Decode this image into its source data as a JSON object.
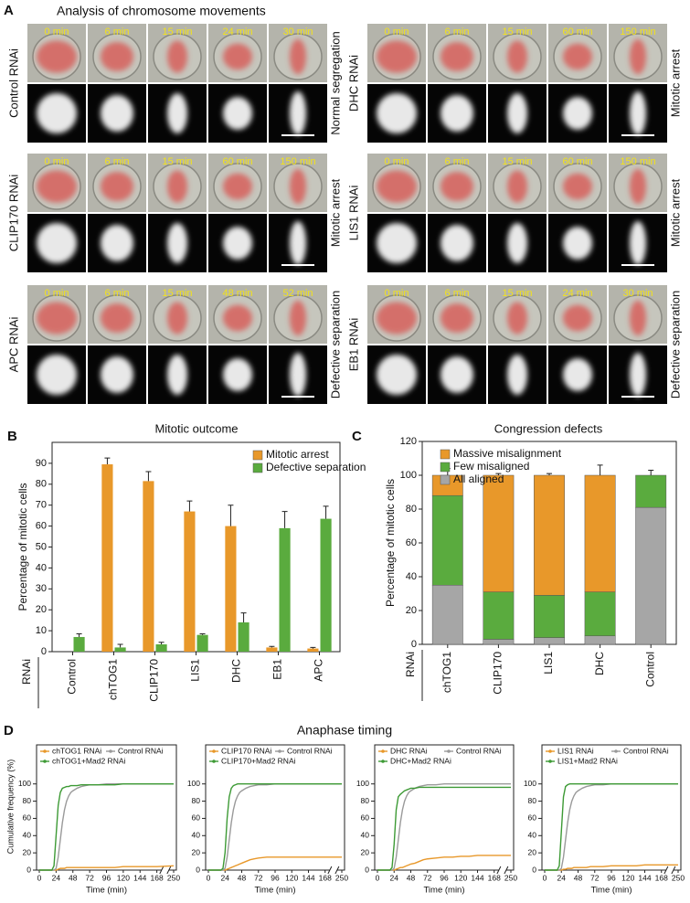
{
  "panel_a": {
    "letter": "A",
    "title": "Analysis of chromosome movements",
    "rows": [
      {
        "rnai": "Control RNAi",
        "outcome": "Normal segregation",
        "times": [
          "0 min",
          "6 min",
          "15 min",
          "24 min",
          "30 min"
        ]
      },
      {
        "rnai": "DHC RNAi",
        "outcome": "Mitotic arrest",
        "times": [
          "0 min",
          "6 min",
          "15 min",
          "60 min",
          "150 min"
        ]
      },
      {
        "rnai": "CLIP170 RNAi",
        "outcome": "Mitotic arrest",
        "times": [
          "0 min",
          "6 min",
          "15 min",
          "60 min",
          "150 min"
        ]
      },
      {
        "rnai": "LIS1 RNAi",
        "outcome": "Mitotic arrest",
        "times": [
          "0 min",
          "6 min",
          "15 min",
          "60 min",
          "150 min"
        ]
      },
      {
        "rnai": "APC RNAi",
        "outcome": "Defective separation",
        "times": [
          "0 min",
          "6 min",
          "15 min",
          "48 min",
          "52 min"
        ]
      },
      {
        "rnai": "EB1 RNAi",
        "outcome": "Defective separation",
        "times": [
          "0 min",
          "6 min",
          "15 min",
          "24 min",
          "30 min"
        ]
      }
    ]
  },
  "panel_d": {
    "letter": "D",
    "title": "Anaphase timing"
  },
  "chart_data": [
    {
      "panel": "B",
      "type": "bar",
      "title": "Mitotic outcome",
      "ylabel": "Percentage of mitotic cells",
      "xlabel": "RNAi",
      "categories": [
        "Control",
        "chTOG1",
        "CLIP170",
        "LIS1",
        "DHC",
        "EB1",
        "APC"
      ],
      "series": [
        {
          "name": "Mitotic arrest",
          "color": "#e8982a",
          "values": [
            null,
            89.5,
            81.5,
            67,
            60,
            2,
            1.5
          ],
          "errors": [
            null,
            3,
            4.5,
            5,
            10,
            0.5,
            0.5
          ]
        },
        {
          "name": "Defective separation",
          "color": "#5aab3e",
          "values": [
            7,
            2,
            3.5,
            8,
            14,
            59,
            63.5
          ],
          "errors": [
            1.5,
            1.5,
            1,
            0.5,
            4.5,
            8,
            6
          ]
        }
      ],
      "ylim": [
        0,
        100
      ],
      "yticks": [
        0,
        10,
        20,
        30,
        40,
        50,
        60,
        70,
        80,
        90
      ],
      "legend": "upper right"
    },
    {
      "panel": "C",
      "type": "stacked_bar",
      "title": "Congression defects",
      "ylabel": "Percentage of mitotic cells",
      "xlabel": "RNAi",
      "categories": [
        "chTOG1",
        "CLIP170",
        "LIS1",
        "DHC",
        "Control"
      ],
      "series": [
        {
          "name": "Massive misalignment",
          "color": "#e8982a",
          "values": [
            12,
            69,
            71,
            69,
            null
          ],
          "errors": [
            4,
            1,
            1,
            6,
            null
          ]
        },
        {
          "name": "Few misaligned",
          "color": "#5aab3e",
          "values": [
            53,
            28,
            25,
            26,
            19
          ],
          "errors": [
            1,
            1,
            2,
            4,
            3
          ]
        },
        {
          "name": "All aligned",
          "color": "#a6a6a6",
          "values": [
            35,
            3,
            4,
            5,
            81
          ],
          "errors": [
            6,
            0.5,
            1.5,
            1.5,
            3.5
          ]
        }
      ],
      "ylim": [
        0,
        120
      ],
      "yticks": [
        0,
        20,
        40,
        60,
        80,
        100,
        120
      ],
      "legend": "upper left"
    },
    {
      "type": "line",
      "ylabel": "Cumulative frequency (%)",
      "xlabel": "Time (min)",
      "x": [
        0,
        12,
        18,
        21,
        24,
        27,
        30,
        33,
        36,
        39,
        42,
        45,
        48,
        54,
        60,
        66,
        72,
        84,
        96,
        108,
        120,
        132,
        144,
        156,
        168,
        250
      ],
      "series": [
        {
          "name": "chTOG1 RNAi",
          "color": "#e8982a",
          "values": [
            0,
            0,
            0,
            0,
            0,
            1,
            2,
            2,
            2,
            3,
            3,
            3,
            3,
            3,
            3,
            3,
            3,
            3,
            3,
            3,
            4,
            4,
            4,
            4,
            4,
            5
          ]
        },
        {
          "name": "Control RNAi",
          "color": "#9a9a9a",
          "values": [
            0,
            0,
            0,
            0,
            2,
            15,
            35,
            55,
            70,
            80,
            86,
            90,
            92,
            95,
            97,
            98,
            99,
            99,
            100,
            100,
            100,
            100,
            100,
            100,
            100,
            100
          ]
        },
        {
          "name": "chTOG1+Mad2 RNAi",
          "color": "#3d9a35",
          "values": [
            0,
            0,
            0,
            5,
            40,
            75,
            90,
            95,
            96,
            97,
            97,
            98,
            98,
            98,
            99,
            99,
            99,
            99,
            99,
            99,
            100,
            100,
            100,
            100,
            100,
            100
          ]
        }
      ],
      "xlim": [
        0,
        250
      ],
      "xticks": [
        0,
        24,
        48,
        72,
        96,
        120,
        144,
        168,
        250
      ],
      "ylim": [
        0,
        105
      ],
      "yticks": [
        0,
        20,
        40,
        60,
        80,
        100
      ]
    },
    {
      "type": "line",
      "xlabel": "Time (min)",
      "x": [
        0,
        12,
        18,
        21,
        24,
        27,
        30,
        33,
        36,
        39,
        42,
        45,
        48,
        54,
        60,
        66,
        72,
        84,
        96,
        108,
        120,
        132,
        144,
        156,
        168,
        250
      ],
      "series": [
        {
          "name": "CLIP170 RNAi",
          "color": "#e8982a",
          "values": [
            0,
            0,
            0,
            0,
            0,
            1,
            2,
            3,
            4,
            5,
            6,
            7,
            8,
            10,
            12,
            13,
            14,
            15,
            15,
            15,
            15,
            15,
            15,
            15,
            15,
            15
          ]
        },
        {
          "name": "Control RNAi",
          "color": "#9a9a9a",
          "values": [
            0,
            0,
            0,
            0,
            2,
            15,
            35,
            55,
            70,
            80,
            86,
            90,
            92,
            95,
            97,
            98,
            99,
            99,
            100,
            100,
            100,
            100,
            100,
            100,
            100,
            100
          ]
        },
        {
          "name": "CLIP170+Mad2 RNAi",
          "color": "#3d9a35",
          "values": [
            0,
            0,
            0,
            2,
            20,
            60,
            85,
            95,
            98,
            99,
            100,
            100,
            100,
            100,
            100,
            100,
            100,
            100,
            100,
            100,
            100,
            100,
            100,
            100,
            100,
            100
          ]
        }
      ],
      "xlim": [
        0,
        250
      ],
      "xticks": [
        0,
        24,
        48,
        72,
        96,
        120,
        144,
        168,
        250
      ],
      "ylim": [
        0,
        105
      ],
      "yticks": [
        0,
        20,
        40,
        60,
        80,
        100
      ]
    },
    {
      "type": "line",
      "xlabel": "Time (min)",
      "x": [
        0,
        12,
        18,
        21,
        24,
        27,
        30,
        33,
        36,
        39,
        42,
        45,
        48,
        54,
        60,
        66,
        72,
        84,
        96,
        108,
        120,
        132,
        144,
        156,
        168,
        250
      ],
      "series": [
        {
          "name": "DHC RNAi",
          "color": "#e8982a",
          "values": [
            0,
            0,
            0,
            0,
            0,
            1,
            2,
            3,
            3,
            4,
            5,
            6,
            7,
            8,
            10,
            12,
            13,
            14,
            15,
            15,
            16,
            16,
            17,
            17,
            17,
            17
          ]
        },
        {
          "name": "Control RNAi",
          "color": "#9a9a9a",
          "values": [
            0,
            0,
            0,
            0,
            2,
            15,
            35,
            55,
            70,
            80,
            86,
            90,
            92,
            95,
            97,
            98,
            99,
            99,
            100,
            100,
            100,
            100,
            100,
            100,
            100,
            100
          ]
        },
        {
          "name": "DHC+Mad2 RNAi",
          "color": "#3d9a35",
          "values": [
            0,
            0,
            0,
            3,
            30,
            70,
            85,
            88,
            90,
            92,
            93,
            94,
            95,
            95,
            96,
            96,
            96,
            96,
            96,
            96,
            96,
            96,
            96,
            96,
            96,
            96
          ]
        }
      ],
      "xlim": [
        0,
        250
      ],
      "xticks": [
        0,
        24,
        48,
        72,
        96,
        120,
        144,
        168,
        250
      ],
      "ylim": [
        0,
        105
      ],
      "yticks": [
        0,
        20,
        40,
        60,
        80,
        100
      ]
    },
    {
      "type": "line",
      "xlabel": "Time (min)",
      "x": [
        0,
        12,
        18,
        21,
        24,
        27,
        30,
        33,
        36,
        39,
        42,
        45,
        48,
        54,
        60,
        66,
        72,
        84,
        96,
        108,
        120,
        132,
        144,
        156,
        168,
        250
      ],
      "series": [
        {
          "name": "LIS1 RNAi",
          "color": "#e8982a",
          "values": [
            0,
            0,
            0,
            0,
            0,
            1,
            1,
            2,
            2,
            2,
            3,
            3,
            3,
            3,
            3,
            4,
            4,
            4,
            5,
            5,
            5,
            5,
            6,
            6,
            6,
            6
          ]
        },
        {
          "name": "Control RNAi",
          "color": "#9a9a9a",
          "values": [
            0,
            0,
            0,
            0,
            2,
            15,
            35,
            55,
            70,
            80,
            86,
            90,
            92,
            95,
            97,
            98,
            99,
            99,
            100,
            100,
            100,
            100,
            100,
            100,
            100,
            100
          ]
        },
        {
          "name": "LIS1+Mad2 RNAi",
          "color": "#3d9a35",
          "values": [
            0,
            0,
            0,
            5,
            45,
            85,
            97,
            99,
            100,
            100,
            100,
            100,
            100,
            100,
            100,
            100,
            100,
            100,
            100,
            100,
            100,
            100,
            100,
            100,
            100,
            100
          ]
        }
      ],
      "xlim": [
        0,
        250
      ],
      "xticks": [
        0,
        24,
        48,
        72,
        96,
        120,
        144,
        168,
        250
      ],
      "ylim": [
        0,
        105
      ],
      "yticks": [
        0,
        20,
        40,
        60,
        80,
        100
      ]
    }
  ]
}
